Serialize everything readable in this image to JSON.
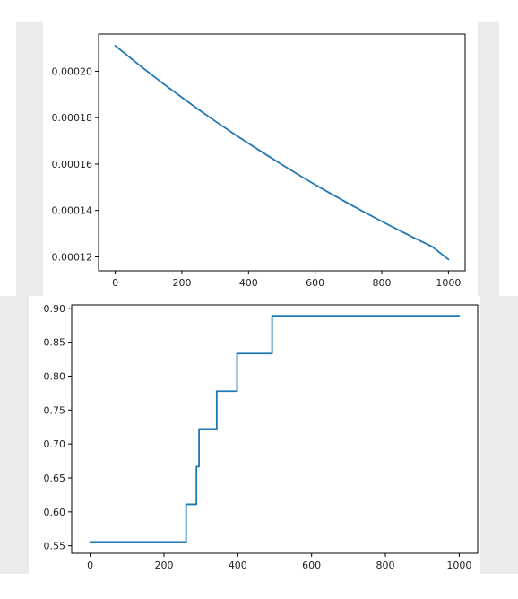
{
  "colors": {
    "line": "#1f77b4",
    "side_bar": "#ebebeb",
    "axis": "#000000"
  },
  "chart_data": [
    {
      "type": "line",
      "title": "",
      "xlabel": "",
      "ylabel": "",
      "grid": false,
      "xlim": [
        -50,
        1050
      ],
      "ylim": [
        0.000114,
        0.000216
      ],
      "xticks": [
        0,
        200,
        400,
        600,
        800,
        1000
      ],
      "xtick_labels": [
        "0",
        "200",
        "400",
        "600",
        "800",
        "1000"
      ],
      "yticks": [
        0.00012,
        0.00014,
        0.00016,
        0.00018,
        0.0002
      ],
      "ytick_labels": [
        "0.00012",
        "0.00014",
        "0.00016",
        "0.00018",
        "0.00020"
      ],
      "series": [
        {
          "x": [
            0,
            50,
            100,
            150,
            200,
            250,
            300,
            350,
            400,
            450,
            500,
            550,
            600,
            650,
            700,
            750,
            800,
            850,
            900,
            950,
            1000
          ],
          "y": [
            0.000211,
            0.0002052,
            0.0001995,
            0.000194,
            0.0001887,
            0.0001835,
            0.0001785,
            0.0001736,
            0.0001689,
            0.0001643,
            0.0001598,
            0.0001554,
            0.0001511,
            0.000147,
            0.000143,
            0.0001391,
            0.0001353,
            0.0001316,
            0.000128,
            0.0001245,
            0.0001189
          ]
        }
      ]
    },
    {
      "type": "line",
      "title": "",
      "xlabel": "",
      "ylabel": "",
      "grid": false,
      "xlim": [
        -50,
        1050
      ],
      "ylim": [
        0.539,
        0.905
      ],
      "xticks": [
        0,
        200,
        400,
        600,
        800,
        1000
      ],
      "xtick_labels": [
        "0",
        "200",
        "400",
        "600",
        "800",
        "1000"
      ],
      "yticks": [
        0.55,
        0.6,
        0.65,
        0.7,
        0.75,
        0.8,
        0.85,
        0.9
      ],
      "ytick_labels": [
        "0.55",
        "0.60",
        "0.65",
        "0.70",
        "0.75",
        "0.80",
        "0.85",
        "0.90"
      ],
      "series": [
        {
          "x": [
            0,
            260,
            260,
            288,
            288,
            295,
            295,
            300,
            300,
            343,
            343,
            398,
            398,
            493,
            493,
            1000
          ],
          "y": [
            0.5556,
            0.5556,
            0.6111,
            0.6111,
            0.6667,
            0.6667,
            0.7222,
            0.7222,
            0.7222,
            0.7222,
            0.7778,
            0.7778,
            0.8333,
            0.8333,
            0.8889,
            0.8889
          ]
        }
      ]
    }
  ]
}
